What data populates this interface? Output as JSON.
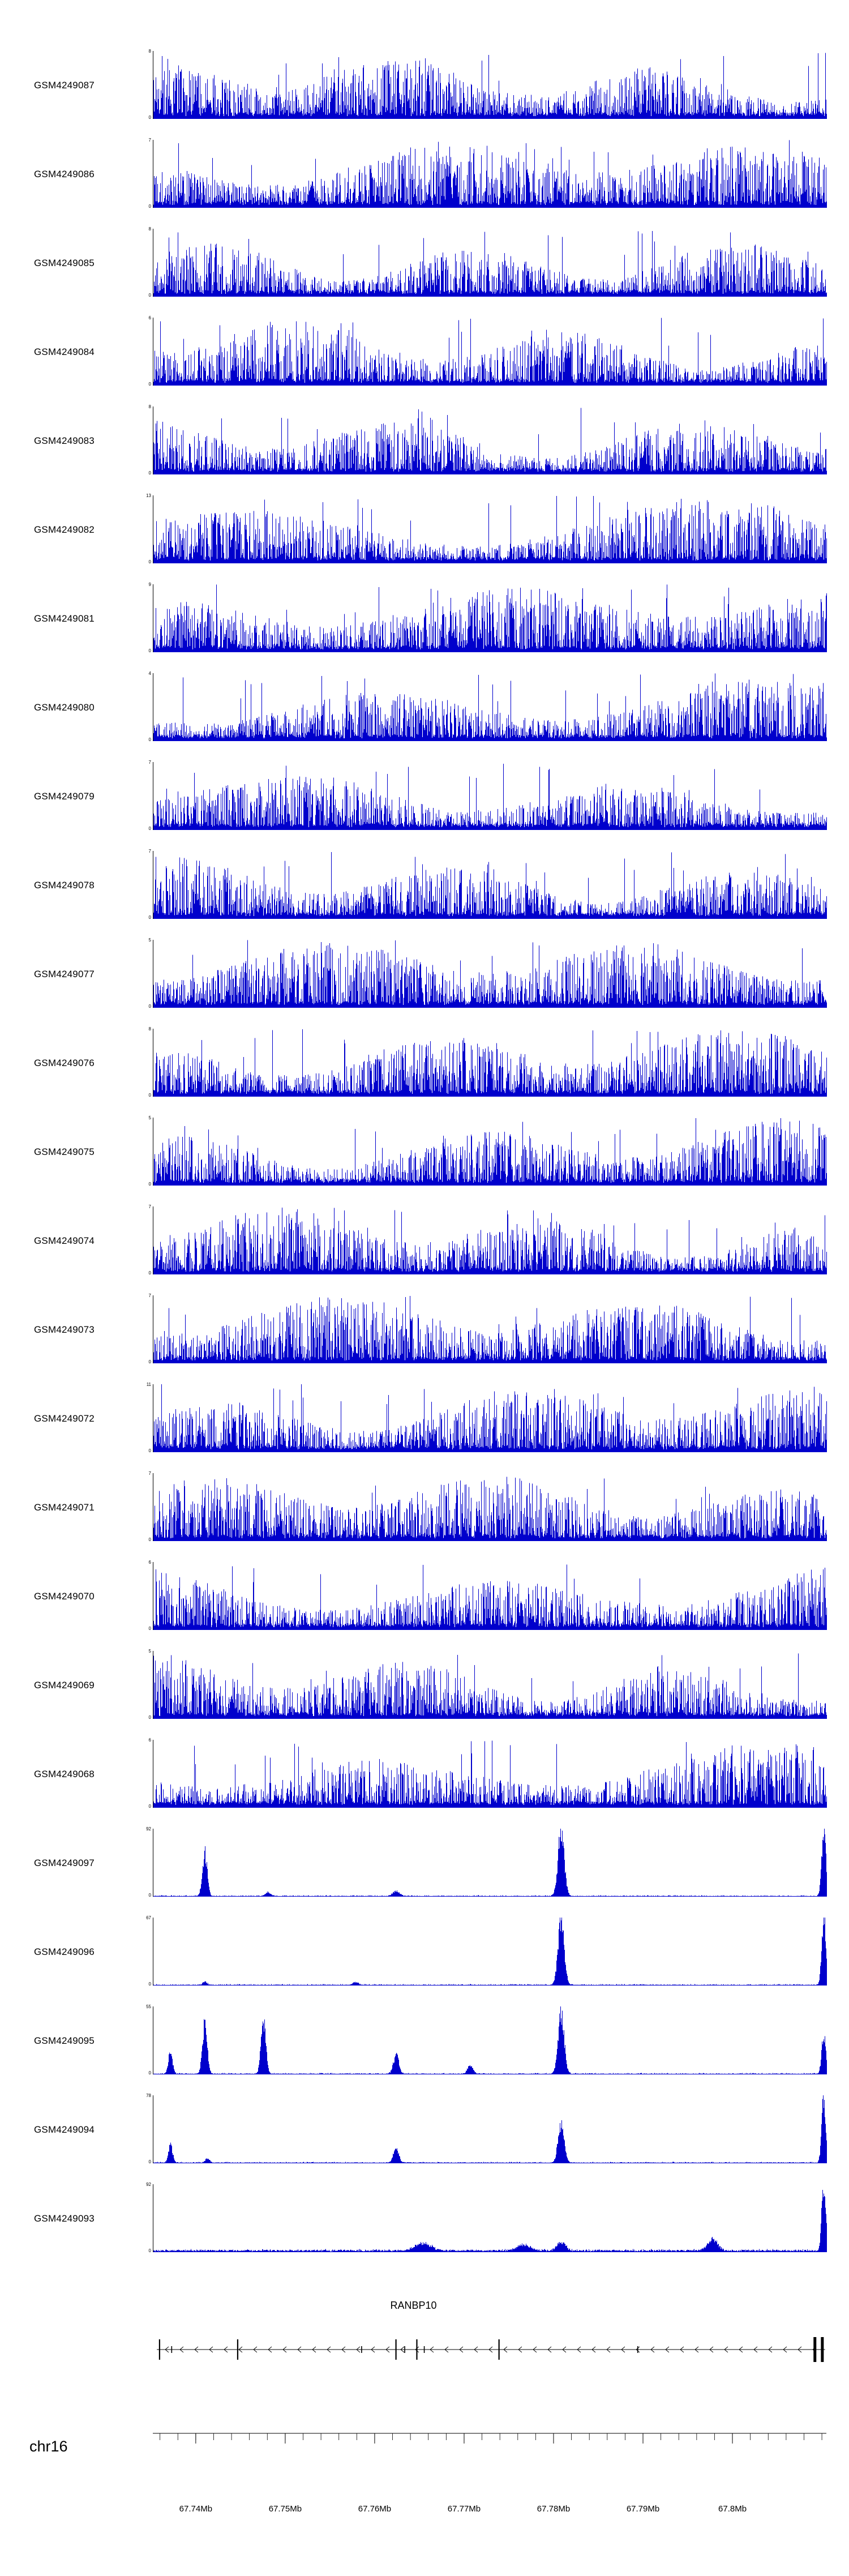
{
  "chart_data": {
    "type": "area",
    "description": "Genome browser read-coverage tracks over chr16 around RANBP10",
    "signal_color": "#0000cc",
    "x_start_mb": 67.7352,
    "x_end_mb": 67.8105,
    "tracks": [
      {
        "id": "GSM4249087",
        "ymin": 0,
        "ymax": 8,
        "profile": "dense",
        "seed": 1
      },
      {
        "id": "GSM4249086",
        "ymin": 0,
        "ymax": 7,
        "profile": "dense",
        "seed": 2
      },
      {
        "id": "GSM4249085",
        "ymin": 0,
        "ymax": 8,
        "profile": "dense",
        "seed": 3
      },
      {
        "id": "GSM4249084",
        "ymin": 0,
        "ymax": 6,
        "profile": "dense",
        "seed": 4
      },
      {
        "id": "GSM4249083",
        "ymin": 0,
        "ymax": 8,
        "profile": "dense",
        "seed": 5
      },
      {
        "id": "GSM4249082",
        "ymin": 0,
        "ymax": 13,
        "profile": "dense",
        "seed": 6
      },
      {
        "id": "GSM4249081",
        "ymin": 0,
        "ymax": 9,
        "profile": "dense",
        "seed": 7
      },
      {
        "id": "GSM4249080",
        "ymin": 0,
        "ymax": 4,
        "profile": "dense",
        "seed": 8
      },
      {
        "id": "GSM4249079",
        "ymin": 0,
        "ymax": 7,
        "profile": "dense",
        "seed": 9
      },
      {
        "id": "GSM4249078",
        "ymin": 0,
        "ymax": 7,
        "profile": "dense",
        "seed": 10
      },
      {
        "id": "GSM4249077",
        "ymin": 0,
        "ymax": 5,
        "profile": "dense",
        "seed": 11
      },
      {
        "id": "GSM4249076",
        "ymin": 0,
        "ymax": 8,
        "profile": "dense",
        "seed": 12
      },
      {
        "id": "GSM4249075",
        "ymin": 0,
        "ymax": 5,
        "profile": "dense",
        "seed": 13
      },
      {
        "id": "GSM4249074",
        "ymin": 0,
        "ymax": 7,
        "profile": "dense",
        "seed": 14
      },
      {
        "id": "GSM4249073",
        "ymin": 0,
        "ymax": 7,
        "profile": "dense",
        "seed": 15
      },
      {
        "id": "GSM4249072",
        "ymin": 0,
        "ymax": 11,
        "profile": "dense",
        "seed": 16
      },
      {
        "id": "GSM4249071",
        "ymin": 0,
        "ymax": 7,
        "profile": "dense",
        "seed": 17
      },
      {
        "id": "GSM4249070",
        "ymin": 0,
        "ymax": 6,
        "profile": "dense",
        "seed": 18
      },
      {
        "id": "GSM4249069",
        "ymin": 0,
        "ymax": 5,
        "profile": "dense",
        "seed": 19
      },
      {
        "id": "GSM4249068",
        "ymin": 0,
        "ymax": 6,
        "profile": "dense",
        "seed": 20
      },
      {
        "id": "GSM4249097",
        "ymin": 0,
        "ymax": 92,
        "profile": "sparse",
        "seed": 21,
        "peaks": [
          {
            "pos": 0.076,
            "h": 0.62,
            "w": 0.0035
          },
          {
            "pos": 0.17,
            "h": 0.05,
            "w": 0.004
          },
          {
            "pos": 0.36,
            "h": 0.07,
            "w": 0.005
          },
          {
            "pos": 0.605,
            "h": 0.95,
            "w": 0.0045
          },
          {
            "pos": 0.995,
            "h": 1.0,
            "w": 0.003
          }
        ]
      },
      {
        "id": "GSM4249096",
        "ymin": 0,
        "ymax": 67,
        "profile": "sparse",
        "seed": 22,
        "peaks": [
          {
            "pos": 0.076,
            "h": 0.05,
            "w": 0.003
          },
          {
            "pos": 0.3,
            "h": 0.04,
            "w": 0.004
          },
          {
            "pos": 0.605,
            "h": 0.93,
            "w": 0.0045
          },
          {
            "pos": 0.995,
            "h": 1.0,
            "w": 0.003
          }
        ]
      },
      {
        "id": "GSM4249095",
        "ymin": 0,
        "ymax": 55,
        "profile": "sparse",
        "seed": 23,
        "peaks": [
          {
            "pos": 0.025,
            "h": 0.32,
            "w": 0.003
          },
          {
            "pos": 0.076,
            "h": 0.73,
            "w": 0.0035
          },
          {
            "pos": 0.163,
            "h": 0.8,
            "w": 0.0035
          },
          {
            "pos": 0.36,
            "h": 0.27,
            "w": 0.004
          },
          {
            "pos": 0.47,
            "h": 0.12,
            "w": 0.004
          },
          {
            "pos": 0.605,
            "h": 0.86,
            "w": 0.0045
          },
          {
            "pos": 0.995,
            "h": 0.58,
            "w": 0.003
          }
        ]
      },
      {
        "id": "GSM4249094",
        "ymin": 0,
        "ymax": 78,
        "profile": "sparse",
        "seed": 24,
        "peaks": [
          {
            "pos": 0.025,
            "h": 0.27,
            "w": 0.003
          },
          {
            "pos": 0.08,
            "h": 0.07,
            "w": 0.003
          },
          {
            "pos": 0.36,
            "h": 0.2,
            "w": 0.004
          },
          {
            "pos": 0.605,
            "h": 0.55,
            "w": 0.0045
          },
          {
            "pos": 0.995,
            "h": 0.96,
            "w": 0.003
          }
        ]
      },
      {
        "id": "GSM4249093",
        "ymin": 0,
        "ymax": 92,
        "profile": "sparse",
        "seed": 25,
        "base": 0.025,
        "peaks": [
          {
            "pos": 0.4,
            "h": 0.1,
            "w": 0.012
          },
          {
            "pos": 0.55,
            "h": 0.08,
            "w": 0.01
          },
          {
            "pos": 0.605,
            "h": 0.13,
            "w": 0.006
          },
          {
            "pos": 0.83,
            "h": 0.17,
            "w": 0.007
          },
          {
            "pos": 0.995,
            "h": 1.0,
            "w": 0.003
          }
        ]
      }
    ],
    "gene_track": {
      "gene": "RANBP10",
      "strand": "reverse",
      "label_pos": 0.387,
      "line_start": 0.006,
      "line_end": 0.998,
      "exons": [
        {
          "pos": 0.01,
          "type": "tall"
        },
        {
          "pos": 0.028,
          "type": "small"
        },
        {
          "pos": 0.126,
          "type": "tall"
        },
        {
          "pos": 0.31,
          "type": "small"
        },
        {
          "pos": 0.361,
          "type": "tall"
        },
        {
          "pos": 0.374,
          "type": "small"
        },
        {
          "pos": 0.392,
          "type": "tall"
        },
        {
          "pos": 0.403,
          "type": "small"
        },
        {
          "pos": 0.514,
          "type": "tall"
        },
        {
          "pos": 0.72,
          "type": "small"
        },
        {
          "pos": 0.983,
          "type": "thick"
        },
        {
          "pos": 0.994,
          "type": "thick"
        }
      ]
    },
    "ruler": {
      "chromosome": "chr16",
      "minor_step_mb": 0.002,
      "tick_values": [
        67.74,
        67.75,
        67.76,
        67.77,
        67.78,
        67.79,
        67.8
      ],
      "tick_labels": [
        "67.74Mb",
        "67.75Mb",
        "67.76Mb",
        "67.77Mb",
        "67.78Mb",
        "67.79Mb",
        "67.8Mb"
      ]
    }
  }
}
